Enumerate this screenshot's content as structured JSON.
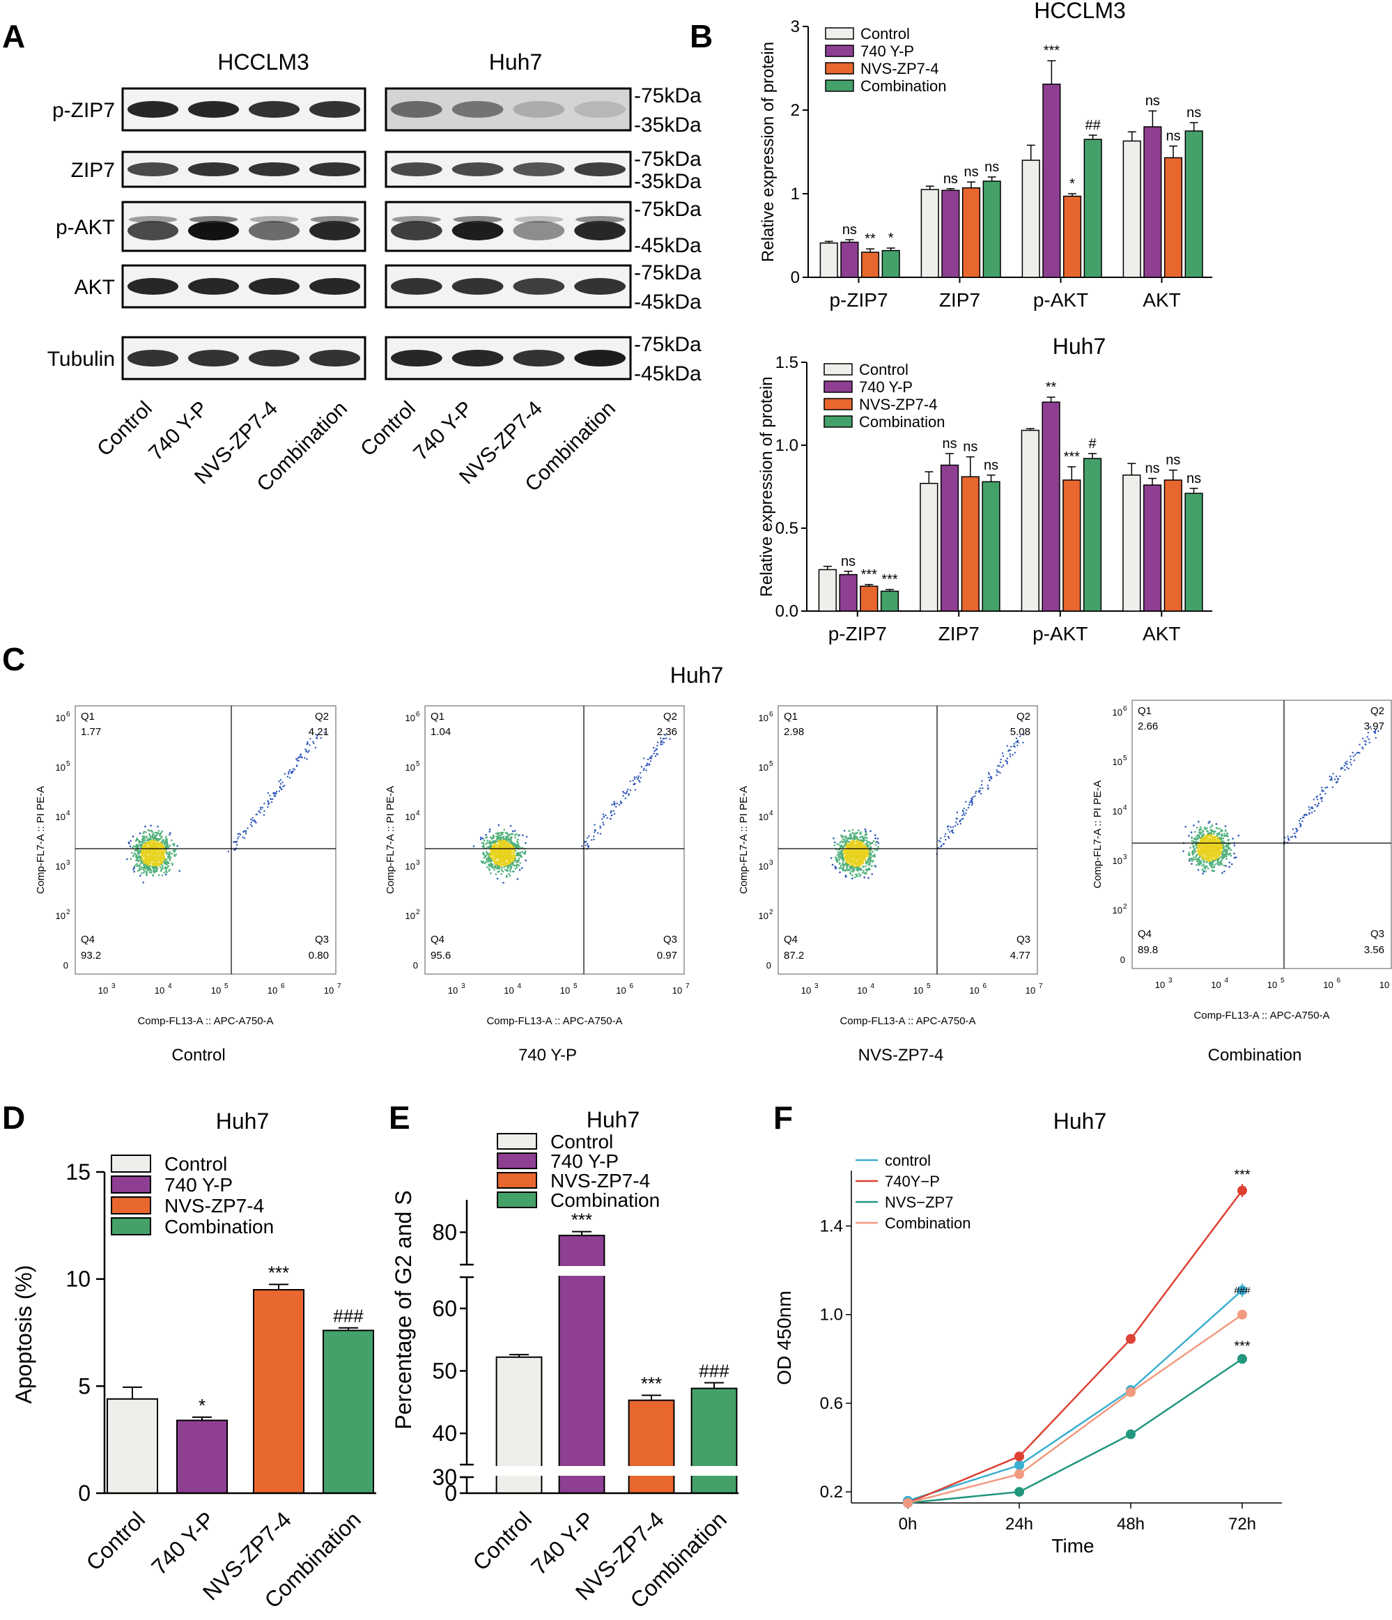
{
  "figure": {
    "panel_labels": [
      "A",
      "B",
      "C",
      "D",
      "E",
      "F"
    ]
  },
  "western": {
    "cell_lines": [
      "HCCLM3",
      "Huh7"
    ],
    "lanes": [
      "Control",
      "740 Y-P",
      "NVS-ZP7-4",
      "Combination"
    ],
    "rows": [
      {
        "label": "p-ZIP7",
        "markers": [
          "-75kDa",
          "-35kDa"
        ]
      },
      {
        "label": "ZIP7",
        "markers": [
          "-75kDa",
          "-35kDa"
        ]
      },
      {
        "label": "p-AKT",
        "markers": [
          "-75kDa",
          "-45kDa"
        ]
      },
      {
        "label": "AKT",
        "markers": [
          "-75kDa",
          "-45kDa"
        ]
      },
      {
        "label": "Tubulin",
        "markers": [
          "-75kDa",
          "-45kDa"
        ]
      }
    ]
  },
  "colors": {
    "control": "#eeeeea",
    "y740": "#8e3f92",
    "nvs": "#e8672f",
    "combo": "#44a16a",
    "line_control": "#3aaed0",
    "line_740": "#dd4132",
    "line_nvs": "#22977e",
    "line_combo": "#f29a7f"
  },
  "chart_data": [
    {
      "id": "B1",
      "type": "bar",
      "title": "HCCLM3",
      "ylabel": "Relative expression of protein",
      "ylim": [
        0,
        3
      ],
      "yticks": [
        "0",
        "1",
        "2",
        "3"
      ],
      "categories": [
        "p-ZIP7",
        "ZIP7",
        "p-AKT",
        "AKT"
      ],
      "series": [
        {
          "name": "Control",
          "values": [
            0.41,
            1.05,
            1.4,
            1.63
          ],
          "err": [
            0.02,
            0.04,
            0.18,
            0.11
          ],
          "sig": [
            "",
            "",
            "",
            ""
          ]
        },
        {
          "name": "740 Y-P",
          "values": [
            0.42,
            1.04,
            2.31,
            1.8
          ],
          "err": [
            0.03,
            0.02,
            0.28,
            0.19
          ],
          "sig": [
            "ns",
            "ns",
            "***",
            "ns"
          ]
        },
        {
          "name": "NVS-ZP7-4",
          "values": [
            0.3,
            1.07,
            0.97,
            1.43
          ],
          "err": [
            0.04,
            0.07,
            0.03,
            0.14
          ],
          "sig": [
            "**",
            "ns",
            "*",
            "ns"
          ]
        },
        {
          "name": "Combination",
          "values": [
            0.32,
            1.15,
            1.65,
            1.75
          ],
          "err": [
            0.03,
            0.05,
            0.05,
            0.1
          ],
          "sig": [
            "*",
            "ns",
            "##",
            "ns"
          ]
        }
      ]
    },
    {
      "id": "B2",
      "type": "bar",
      "title": "Huh7",
      "ylabel": "Relative expression of protein",
      "ylim": [
        0,
        1.5
      ],
      "yticks": [
        "0.0",
        "0.5",
        "1.0",
        "1.5"
      ],
      "categories": [
        "p-ZIP7",
        "ZIP7",
        "p-AKT",
        "AKT"
      ],
      "series": [
        {
          "name": "Control",
          "values": [
            0.25,
            0.77,
            1.09,
            0.82
          ],
          "err": [
            0.02,
            0.07,
            0.01,
            0.07
          ],
          "sig": [
            "",
            "",
            "",
            ""
          ]
        },
        {
          "name": "740 Y-P",
          "values": [
            0.22,
            0.88,
            1.26,
            0.76
          ],
          "err": [
            0.02,
            0.07,
            0.03,
            0.04
          ],
          "sig": [
            "ns",
            "ns",
            "**",
            "ns"
          ]
        },
        {
          "name": "NVS-ZP7-4",
          "values": [
            0.15,
            0.81,
            0.79,
            0.79
          ],
          "err": [
            0.01,
            0.12,
            0.08,
            0.06
          ],
          "sig": [
            "***",
            "ns",
            "***",
            "ns"
          ]
        },
        {
          "name": "Combination",
          "values": [
            0.12,
            0.78,
            0.92,
            0.71
          ],
          "err": [
            0.01,
            0.04,
            0.03,
            0.03
          ],
          "sig": [
            "***",
            "ns",
            "#",
            "ns"
          ]
        }
      ]
    },
    {
      "id": "C",
      "type": "scatter",
      "title": "Huh7",
      "xlabel": "Comp-FL13-A :: APC-A750-A",
      "ylabel": "Comp-FL7-A :: PI PE-A",
      "xticks": [
        "3",
        "4",
        "5",
        "6",
        "7"
      ],
      "yticks": [
        "0",
        "2",
        "3",
        "4",
        "5",
        "6"
      ],
      "plots": [
        {
          "name": "Control",
          "q1": "1.77",
          "q2": "4.21",
          "q3": "0.80",
          "q4": "93.2"
        },
        {
          "name": "740 Y-P",
          "q1": "1.04",
          "q2": "2.36",
          "q3": "0.97",
          "q4": "95.6"
        },
        {
          "name": "NVS-ZP7-4",
          "q1": "2.98",
          "q2": "5.08",
          "q3": "4.77",
          "q4": "87.2"
        },
        {
          "name": "Combination",
          "q1": "2.66",
          "q2": "3.97",
          "q3": "3.56",
          "q4": "89.8"
        }
      ]
    },
    {
      "id": "D",
      "type": "bar",
      "title": "Huh7",
      "ylabel": "Apoptosis (%)",
      "ylim": [
        0,
        15
      ],
      "yticks": [
        "0",
        "5",
        "10",
        "15"
      ],
      "categories": [
        "Control",
        "740 Y-P",
        "NVS-ZP7-4",
        "Combination"
      ],
      "values": [
        4.4,
        3.4,
        9.5,
        7.6
      ],
      "err": [
        0.55,
        0.15,
        0.25,
        0.12
      ],
      "sig": [
        "",
        "*",
        "***",
        "###"
      ]
    },
    {
      "id": "E",
      "type": "bar",
      "title": "Huh7",
      "ylabel": "Percentage of G2 and S",
      "ybreak": [
        30,
        35,
        65,
        75
      ],
      "yticks": [
        "0",
        "30",
        "40",
        "50",
        "60",
        "80"
      ],
      "categories": [
        "Control",
        "740 Y-P",
        "NVS-ZP7-4",
        "Combination"
      ],
      "values": [
        52.2,
        79.5,
        45.3,
        47.2
      ],
      "err": [
        0.4,
        0.6,
        0.8,
        0.9
      ],
      "sig": [
        "",
        "***",
        "***",
        "###"
      ]
    },
    {
      "id": "F",
      "type": "line",
      "title": "Huh7",
      "xlabel": "Time",
      "ylabel": "OD 450nm",
      "x": [
        "0h",
        "24h",
        "48h",
        "72h"
      ],
      "ylim": [
        0.15,
        1.65
      ],
      "yticks": [
        "0.2",
        "0.6",
        "1.0",
        "1.4"
      ],
      "series": [
        {
          "name": "control",
          "values": [
            0.16,
            0.32,
            0.66,
            1.11
          ],
          "err": [
            0.01,
            0.01,
            0.01,
            0.03
          ]
        },
        {
          "name": "740Y−P",
          "values": [
            0.15,
            0.36,
            0.89,
            1.56
          ],
          "err": [
            0.01,
            0.01,
            0.01,
            0.03
          ]
        },
        {
          "name": "NVS−ZP7",
          "values": [
            0.15,
            0.2,
            0.46,
            0.8
          ],
          "err": [
            0.01,
            0.01,
            0.01,
            0.01
          ]
        },
        {
          "name": "Combination",
          "values": [
            0.15,
            0.28,
            0.65,
            1.0
          ],
          "err": [
            0.01,
            0.01,
            0.01,
            0.01
          ]
        }
      ],
      "annotations": [
        "***",
        "###",
        "***"
      ]
    }
  ]
}
